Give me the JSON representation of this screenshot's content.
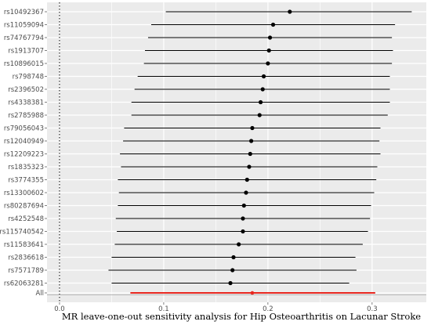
{
  "chart_data": {
    "type": "forest",
    "title": "",
    "xlabel": "MR leave-one-out sensitivity analysis for Hip Osteoarthritis on Lacunar Stroke",
    "ylabel": "",
    "xlim": [
      -0.012,
      0.352
    ],
    "x_ticks": [
      0.0,
      0.1,
      0.2,
      0.3
    ],
    "x_tick_labels": [
      "0.0",
      "0.1",
      "0.2",
      "0.3"
    ],
    "reference_line_x": 0,
    "background": "#ebebeb",
    "grid": true,
    "grid_color": "#ffffff",
    "point_color": "#000000",
    "overall_color": "#e8271f",
    "rows": [
      {
        "label": "rs10492367",
        "estimate": 0.221,
        "lower": 0.102,
        "upper": 0.338
      },
      {
        "label": "rs11059094",
        "estimate": 0.205,
        "lower": 0.088,
        "upper": 0.322
      },
      {
        "label": "rs74767794",
        "estimate": 0.202,
        "lower": 0.085,
        "upper": 0.319
      },
      {
        "label": "rs1913707",
        "estimate": 0.201,
        "lower": 0.082,
        "upper": 0.32
      },
      {
        "label": "rs10896015",
        "estimate": 0.2,
        "lower": 0.081,
        "upper": 0.319
      },
      {
        "label": "rs798748",
        "estimate": 0.196,
        "lower": 0.075,
        "upper": 0.317
      },
      {
        "label": "rs2396502",
        "estimate": 0.195,
        "lower": 0.072,
        "upper": 0.317
      },
      {
        "label": "rs4338381",
        "estimate": 0.193,
        "lower": 0.069,
        "upper": 0.317
      },
      {
        "label": "rs2785988",
        "estimate": 0.192,
        "lower": 0.069,
        "upper": 0.315
      },
      {
        "label": "rs79056043",
        "estimate": 0.185,
        "lower": 0.062,
        "upper": 0.308
      },
      {
        "label": "rs12040949",
        "estimate": 0.184,
        "lower": 0.061,
        "upper": 0.307
      },
      {
        "label": "rs12209223",
        "estimate": 0.183,
        "lower": 0.058,
        "upper": 0.308
      },
      {
        "label": "rs1835323",
        "estimate": 0.182,
        "lower": 0.059,
        "upper": 0.305
      },
      {
        "label": "rs3774355",
        "estimate": 0.18,
        "lower": 0.056,
        "upper": 0.304
      },
      {
        "label": "rs13300602",
        "estimate": 0.179,
        "lower": 0.057,
        "upper": 0.302
      },
      {
        "label": "rs80287694",
        "estimate": 0.177,
        "lower": 0.056,
        "upper": 0.299
      },
      {
        "label": "rs4252548",
        "estimate": 0.176,
        "lower": 0.054,
        "upper": 0.298
      },
      {
        "label": "rs115740542",
        "estimate": 0.176,
        "lower": 0.055,
        "upper": 0.296
      },
      {
        "label": "rs11583641",
        "estimate": 0.172,
        "lower": 0.053,
        "upper": 0.291
      },
      {
        "label": "rs2836618",
        "estimate": 0.167,
        "lower": 0.05,
        "upper": 0.284
      },
      {
        "label": "rs7571789",
        "estimate": 0.166,
        "lower": 0.047,
        "upper": 0.285
      },
      {
        "label": "rs62063281",
        "estimate": 0.164,
        "lower": 0.05,
        "upper": 0.278
      }
    ],
    "overall": {
      "label": "All",
      "estimate": 0.185,
      "lower": 0.068,
      "upper": 0.303
    }
  }
}
